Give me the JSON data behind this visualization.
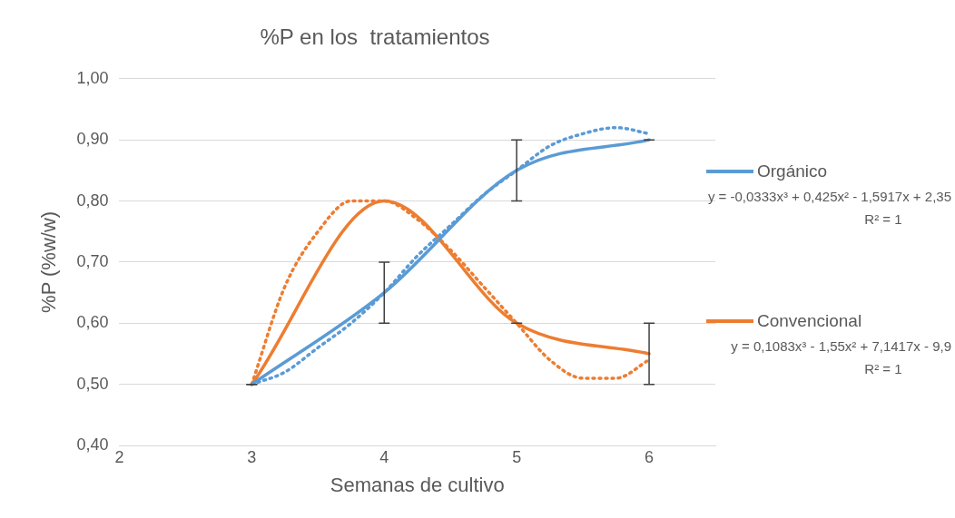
{
  "chart_data": {
    "type": "line",
    "title": "%P en los  tratamientos",
    "xlabel": "Semanas de cultivo",
    "ylabel": "%P (%w/w)",
    "x": [
      3,
      4,
      5,
      6
    ],
    "series": [
      {
        "name": "Orgánico",
        "color": "#5b9bd5",
        "values": [
          0.5,
          0.65,
          0.85,
          0.9
        ],
        "errors": [
          0,
          0.05,
          0.05,
          0
        ]
      },
      {
        "name": "Convencional",
        "color": "#ed7d31",
        "values": [
          0.5,
          0.8,
          0.6,
          0.55
        ],
        "errors": [
          0,
          null,
          0,
          0.05
        ]
      },
      {
        "color": "#5b9bd5",
        "line_style": "dotted",
        "x": [
          3,
          3.25,
          3.5,
          3.75,
          4,
          4.25,
          4.5,
          4.75,
          5,
          5.25,
          5.5,
          5.75,
          6
        ],
        "values": [
          0.5,
          0.52,
          0.56,
          0.6,
          0.65,
          0.71,
          0.76,
          0.81,
          0.85,
          0.89,
          0.91,
          0.92,
          0.91
        ]
      },
      {
        "color": "#ed7d31",
        "line_style": "dotted",
        "x": [
          3,
          3.25,
          3.5,
          3.75,
          4,
          4.25,
          4.5,
          4.75,
          5,
          5.25,
          5.5,
          5.75,
          6
        ],
        "values": [
          0.5,
          0.66,
          0.75,
          0.8,
          0.8,
          0.77,
          0.72,
          0.66,
          0.6,
          0.54,
          0.51,
          0.51,
          0.54
        ]
      }
    ],
    "annotations": [
      "y = -0,0333x³ + 0,425x² - 1,5917x + 2,35",
      "R² = 1",
      "y = 0,1083x³ - 1,55x² + 7,1417x - 9,9",
      "R² = 1"
    ],
    "xlim": [
      2,
      6.5
    ],
    "xticks": [
      2,
      3,
      4,
      5,
      6
    ],
    "ylim": [
      0.4,
      1.0
    ],
    "yticks": [
      {
        "value": 0.4,
        "label": "0,40"
      },
      {
        "value": 0.5,
        "label": "0,50"
      },
      {
        "value": 0.6,
        "label": "0,60"
      },
      {
        "value": 0.7,
        "label": "0,70"
      },
      {
        "value": 0.8,
        "label": "0,80"
      },
      {
        "value": 0.9,
        "label": "0,90"
      },
      {
        "value": 1.0,
        "label": "1,00"
      }
    ],
    "grid": "y",
    "legend": "right",
    "marker": "none",
    "line_style": "solid"
  }
}
